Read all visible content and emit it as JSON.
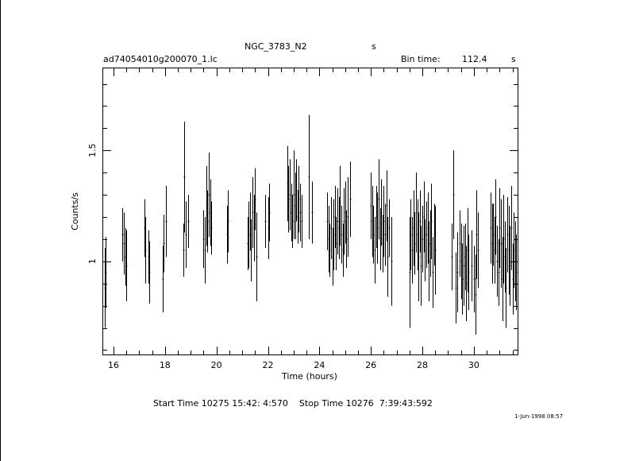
{
  "header": {
    "object": "NGC_3783_N2",
    "object_unit": "s",
    "filename": "ad74054010g200070_1.lc",
    "bin_label": "Bin time:",
    "bin_value": "112.4",
    "bin_unit": "s"
  },
  "footer": {
    "times": "Start Time 10275 15:42: 4:570    Stop Time 10276  7:39:43:592",
    "date_stamp": "1-Jun-1998 08:57"
  },
  "chart_data": {
    "type": "line",
    "xlabel": "Time (hours)",
    "ylabel": "Counts/s",
    "xlim": [
      15.6,
      31.7
    ],
    "ylim": [
      0.58,
      1.87
    ],
    "xticks_major": [
      16,
      18,
      20,
      22,
      24,
      26,
      28,
      30
    ],
    "yticks_major": [
      1,
      1.5
    ],
    "ytick_labels": [
      "1",
      "1.5"
    ],
    "series": [
      {
        "style": "error-bar segments",
        "x": [
          15.65,
          15.7,
          16.35,
          16.4,
          16.45,
          16.5,
          17.2,
          17.25,
          17.35,
          17.4,
          17.9,
          17.95,
          18.05,
          18.7,
          18.75,
          18.8,
          18.9,
          19.5,
          19.55,
          19.6,
          19.65,
          19.7,
          19.75,
          19.8,
          20.4,
          20.45,
          21.2,
          21.25,
          21.3,
          21.35,
          21.4,
          21.45,
          21.5,
          21.55,
          21.9,
          22.0,
          22.05,
          22.75,
          22.8,
          22.85,
          22.9,
          22.95,
          23.0,
          23.05,
          23.1,
          23.15,
          23.2,
          23.25,
          23.3,
          23.6,
          23.7,
          24.3,
          24.35,
          24.4,
          24.45,
          24.5,
          24.55,
          24.6,
          24.65,
          24.7,
          24.75,
          24.8,
          24.85,
          24.9,
          24.95,
          25.0,
          25.05,
          25.1,
          25.2,
          26.0,
          26.05,
          26.1,
          26.15,
          26.2,
          26.25,
          26.3,
          26.35,
          26.4,
          26.45,
          26.5,
          26.55,
          26.6,
          26.65,
          26.7,
          26.8,
          27.5,
          27.55,
          27.6,
          27.65,
          27.7,
          27.75,
          27.8,
          27.85,
          27.9,
          27.95,
          28.0,
          28.05,
          28.1,
          28.15,
          28.2,
          28.25,
          28.3,
          28.35,
          28.4,
          28.45,
          28.5,
          29.15,
          29.2,
          29.3,
          29.35,
          29.45,
          29.5,
          29.55,
          29.6,
          29.65,
          29.7,
          29.75,
          29.8,
          29.9,
          30.0,
          30.05,
          30.1,
          30.15,
          30.65,
          30.7,
          30.75,
          30.8,
          30.85,
          30.9,
          30.95,
          31.0,
          31.05,
          31.1,
          31.15,
          31.2,
          31.25,
          31.3,
          31.35,
          31.4,
          31.45,
          31.5,
          31.55,
          31.6,
          31.65
        ],
        "y": [
          0.88,
          0.95,
          1.12,
          1.08,
          1.02,
          0.98,
          1.15,
          1.05,
          1.02,
          0.95,
          0.92,
          1.08,
          1.18,
          1.05,
          1.38,
          1.12,
          1.18,
          1.1,
          1.05,
          1.25,
          1.18,
          1.3,
          1.22,
          1.15,
          1.12,
          1.18,
          1.08,
          1.12,
          1.18,
          1.05,
          1.22,
          1.15,
          1.28,
          1.02,
          1.18,
          1.15,
          1.22,
          1.35,
          1.28,
          1.3,
          1.22,
          1.18,
          1.3,
          1.25,
          1.32,
          1.2,
          1.28,
          1.22,
          1.18,
          1.38,
          1.22,
          1.18,
          1.1,
          1.05,
          1.15,
          1.02,
          1.12,
          1.2,
          1.08,
          1.18,
          1.15,
          1.25,
          1.12,
          1.05,
          1.18,
          1.22,
          1.1,
          1.2,
          1.28,
          1.25,
          1.18,
          1.12,
          1.05,
          1.2,
          1.15,
          1.28,
          1.1,
          1.22,
          1.08,
          1.18,
          1.12,
          1.25,
          1.02,
          1.15,
          1.0,
          0.95,
          1.12,
          1.05,
          1.15,
          1.08,
          1.22,
          1.12,
          1.02,
          1.18,
          0.98,
          1.1,
          1.2,
          1.05,
          1.12,
          1.15,
          1.0,
          1.08,
          1.18,
          0.95,
          1.12,
          1.05,
          1.02,
          1.3,
          0.88,
          0.95,
          1.08,
          1.0,
          0.92,
          0.98,
          1.02,
          0.9,
          1.05,
          0.95,
          0.98,
          0.92,
          0.85,
          1.12,
          1.05,
          1.15,
          1.08,
          1.12,
          1.05,
          1.2,
          1.0,
          0.95,
          1.15,
          1.08,
          0.92,
          1.1,
          1.02,
          0.88,
          1.12,
          1.05,
          0.98,
          1.15,
          0.92,
          1.05,
          1.0,
          0.95
        ],
        "err": [
          0.18,
          0.16,
          0.12,
          0.14,
          0.13,
          0.16,
          0.13,
          0.15,
          0.12,
          0.14,
          0.15,
          0.13,
          0.16,
          0.12,
          0.25,
          0.15,
          0.12,
          0.13,
          0.15,
          0.18,
          0.14,
          0.19,
          0.15,
          0.12,
          0.13,
          0.14,
          0.12,
          0.15,
          0.13,
          0.14,
          0.16,
          0.15,
          0.14,
          0.2,
          0.12,
          0.14,
          0.13,
          0.17,
          0.15,
          0.16,
          0.13,
          0.12,
          0.2,
          0.15,
          0.14,
          0.12,
          0.15,
          0.13,
          0.12,
          0.28,
          0.14,
          0.13,
          0.15,
          0.12,
          0.14,
          0.13,
          0.16,
          0.14,
          0.12,
          0.15,
          0.14,
          0.18,
          0.13,
          0.12,
          0.15,
          0.14,
          0.13,
          0.18,
          0.17,
          0.15,
          0.16,
          0.13,
          0.15,
          0.14,
          0.16,
          0.18,
          0.14,
          0.15,
          0.13,
          0.16,
          0.14,
          0.16,
          0.18,
          0.13,
          0.2,
          0.25,
          0.16,
          0.15,
          0.17,
          0.14,
          0.18,
          0.16,
          0.2,
          0.14,
          0.18,
          0.15,
          0.16,
          0.14,
          0.15,
          0.16,
          0.18,
          0.15,
          0.17,
          0.16,
          0.14,
          0.2,
          0.15,
          0.2,
          0.16,
          0.18,
          0.15,
          0.17,
          0.16,
          0.18,
          0.15,
          0.17,
          0.19,
          0.17,
          0.16,
          0.15,
          0.18,
          0.2,
          0.17,
          0.16,
          0.18,
          0.14,
          0.15,
          0.17,
          0.16,
          0.15,
          0.18,
          0.2,
          0.19,
          0.2,
          0.16,
          0.18,
          0.17,
          0.2,
          0.18,
          0.19,
          0.16,
          0.17,
          0.18,
          0.17
        ]
      }
    ]
  }
}
